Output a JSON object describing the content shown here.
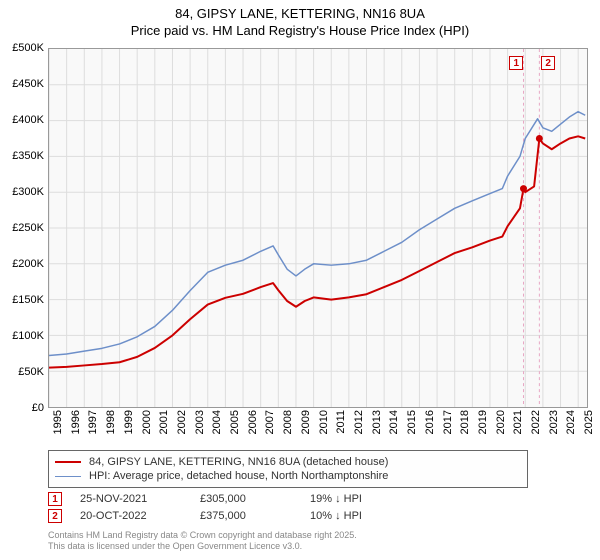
{
  "title": {
    "line1": "84, GIPSY LANE, KETTERING, NN16 8UA",
    "line2": "Price paid vs. HM Land Registry's House Price Index (HPI)",
    "fontsize": 13,
    "color": "#000000"
  },
  "chart": {
    "type": "line",
    "background_color": "#f9f9f9",
    "border_color": "#999999",
    "grid_color": "#dddddd",
    "ylim": [
      0,
      500000
    ],
    "ytick_step": 50000,
    "ytick_labels": [
      "£0",
      "£50K",
      "£100K",
      "£150K",
      "£200K",
      "£250K",
      "£300K",
      "£350K",
      "£400K",
      "£450K",
      "£500K"
    ],
    "xlim": [
      1995,
      2025.5
    ],
    "xticks": [
      1995,
      1996,
      1997,
      1998,
      1999,
      2000,
      2001,
      2002,
      2003,
      2004,
      2005,
      2006,
      2007,
      2008,
      2009,
      2010,
      2011,
      2012,
      2013,
      2014,
      2015,
      2016,
      2017,
      2018,
      2019,
      2020,
      2021,
      2022,
      2023,
      2024,
      2025
    ],
    "label_fontsize": 11,
    "series": [
      {
        "id": "hpi",
        "label": "HPI: Average price, detached house, North Northamptonshire",
        "color": "#6d8fc9",
        "width": 1.5,
        "points": [
          [
            1995,
            72000
          ],
          [
            1996,
            74000
          ],
          [
            1997,
            78000
          ],
          [
            1998,
            82000
          ],
          [
            1999,
            88000
          ],
          [
            2000,
            98000
          ],
          [
            2001,
            112500
          ],
          [
            2002,
            135000
          ],
          [
            2003,
            162500
          ],
          [
            2004,
            188000
          ],
          [
            2005,
            198000
          ],
          [
            2006,
            205000
          ],
          [
            2007,
            217500
          ],
          [
            2007.7,
            225000
          ],
          [
            2008,
            212500
          ],
          [
            2008.5,
            192500
          ],
          [
            2009,
            183000
          ],
          [
            2009.5,
            192500
          ],
          [
            2010,
            200000
          ],
          [
            2011,
            198000
          ],
          [
            2012,
            200000
          ],
          [
            2013,
            205000
          ],
          [
            2014,
            217500
          ],
          [
            2015,
            230000
          ],
          [
            2016,
            247500
          ],
          [
            2017,
            262500
          ],
          [
            2018,
            277500
          ],
          [
            2019,
            288000
          ],
          [
            2020,
            298000
          ],
          [
            2020.7,
            305000
          ],
          [
            2021,
            322500
          ],
          [
            2021.7,
            350000
          ],
          [
            2022,
            375000
          ],
          [
            2022.7,
            402500
          ],
          [
            2023,
            390000
          ],
          [
            2023.5,
            385000
          ],
          [
            2024,
            395000
          ],
          [
            2024.5,
            405000
          ],
          [
            2025,
            412500
          ],
          [
            2025.4,
            407500
          ]
        ]
      },
      {
        "id": "price_paid",
        "label": "84, GIPSY LANE, KETTERING, NN16 8UA (detached house)",
        "color": "#cc0000",
        "width": 2,
        "points": [
          [
            1995,
            55000
          ],
          [
            1996,
            56000
          ],
          [
            1997,
            58000
          ],
          [
            1998,
            60000
          ],
          [
            1999,
            62500
          ],
          [
            2000,
            70000
          ],
          [
            2001,
            82500
          ],
          [
            2002,
            100000
          ],
          [
            2003,
            122500
          ],
          [
            2004,
            143000
          ],
          [
            2005,
            152500
          ],
          [
            2006,
            158000
          ],
          [
            2007,
            167500
          ],
          [
            2007.7,
            173000
          ],
          [
            2008,
            163000
          ],
          [
            2008.5,
            148000
          ],
          [
            2009,
            140000
          ],
          [
            2009.5,
            148000
          ],
          [
            2010,
            153000
          ],
          [
            2011,
            150000
          ],
          [
            2012,
            153000
          ],
          [
            2013,
            157500
          ],
          [
            2014,
            167500
          ],
          [
            2015,
            177500
          ],
          [
            2016,
            190000
          ],
          [
            2017,
            202500
          ],
          [
            2018,
            215000
          ],
          [
            2019,
            223000
          ],
          [
            2020,
            232500
          ],
          [
            2020.7,
            238000
          ],
          [
            2021,
            252500
          ],
          [
            2021.7,
            277500
          ],
          [
            2021.9,
            305000
          ],
          [
            2022,
            300000
          ],
          [
            2022.5,
            308000
          ],
          [
            2022.8,
            375000
          ],
          [
            2023,
            368000
          ],
          [
            2023.5,
            360000
          ],
          [
            2024,
            368000
          ],
          [
            2024.5,
            375000
          ],
          [
            2025,
            378000
          ],
          [
            2025.4,
            375000
          ]
        ]
      }
    ],
    "sale_markers": [
      {
        "num": "1",
        "year": 2021.9,
        "color": "#cc0000"
      },
      {
        "num": "2",
        "year": 2022.8,
        "color": "#cc0000"
      }
    ],
    "marker_line_color": "#e8a7c4"
  },
  "legend": {
    "border_color": "#666666",
    "items": [
      {
        "color": "#cc0000",
        "width": 2,
        "text": "84, GIPSY LANE, KETTERING, NN16 8UA (detached house)"
      },
      {
        "color": "#6d8fc9",
        "width": 1.5,
        "text": "HPI: Average price, detached house, North Northamptonshire"
      }
    ]
  },
  "sales": [
    {
      "num": "1",
      "color": "#cc0000",
      "date": "25-NOV-2021",
      "price": "£305,000",
      "diff": "19% ↓ HPI"
    },
    {
      "num": "2",
      "color": "#cc0000",
      "date": "20-OCT-2022",
      "price": "£375,000",
      "diff": "10% ↓ HPI"
    }
  ],
  "footer": {
    "line1": "Contains HM Land Registry data © Crown copyright and database right 2025.",
    "line2": "This data is licensed under the Open Government Licence v3.0.",
    "color": "#888888",
    "fontsize": 9
  }
}
